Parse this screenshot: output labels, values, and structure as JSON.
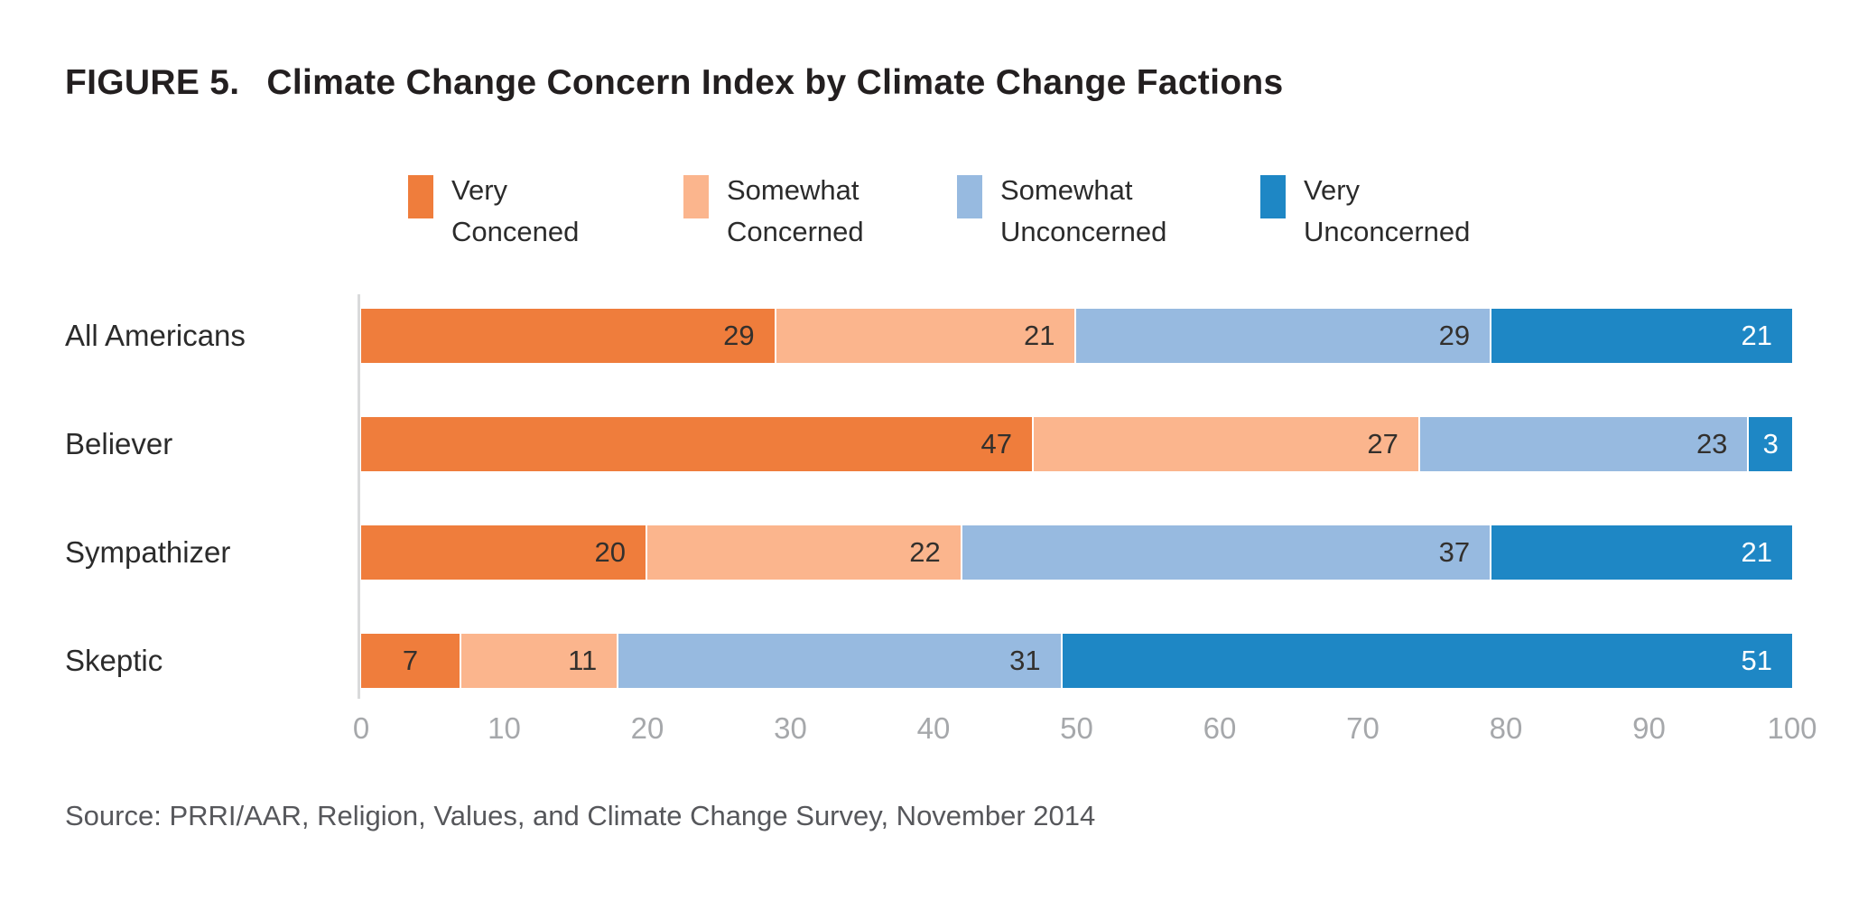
{
  "title": {
    "label": "FIGURE 5.",
    "text": "Climate Change Concern Index by Climate Change Factions"
  },
  "legend": [
    {
      "lines": [
        "Very",
        "Concened"
      ],
      "color": "#EF7D3C"
    },
    {
      "lines": [
        "Somewhat",
        "Concerned"
      ],
      "color": "#FBB58D"
    },
    {
      "lines": [
        "Somewhat",
        "Unconcerned"
      ],
      "color": "#97BAE0"
    },
    {
      "lines": [
        "Very",
        "Unconcerned"
      ],
      "color": "#1E87C5"
    }
  ],
  "chart_data": {
    "type": "bar",
    "variant": "horizontal-stacked",
    "title": "FIGURE 5. Climate Change Concern Index by Climate Change Factions",
    "categories": [
      "All Americans",
      "Believer",
      "Sympathizer",
      "Skeptic"
    ],
    "series": [
      {
        "name": "Very Concened",
        "color": "#EF7D3C",
        "value_label_color": "#33302D",
        "values": [
          29,
          47,
          20,
          7
        ]
      },
      {
        "name": "Somewhat Concerned",
        "color": "#FBB58D",
        "value_label_color": "#33302D",
        "values": [
          21,
          27,
          22,
          11
        ]
      },
      {
        "name": "Somewhat Unconcerned",
        "color": "#97BAE0",
        "value_label_color": "#33302D",
        "values": [
          29,
          23,
          37,
          31
        ]
      },
      {
        "name": "Very Unconcerned",
        "color": "#1E87C5",
        "value_label_color": "#FFFFFF",
        "values": [
          21,
          3,
          21,
          51
        ]
      }
    ],
    "xlim": [
      0,
      100
    ],
    "x_ticks": [
      0,
      10,
      20,
      30,
      40,
      50,
      60,
      70,
      80,
      90,
      100
    ],
    "unit": "percent",
    "grid": false,
    "legend_position": "top",
    "value_labels": "inside-right"
  },
  "axis": {
    "tick_color": "#A6A8AB",
    "baseline_color": "#D9DADB"
  },
  "source": "Source: PRRI/AAR, Religion, Values, and Climate Change Survey, November 2014",
  "colors": {
    "background": "#FFFFFF",
    "title": "#231F20",
    "category_label": "#2B2B2B",
    "legend_text": "#2B2B2B",
    "source_text": "#56575B"
  }
}
